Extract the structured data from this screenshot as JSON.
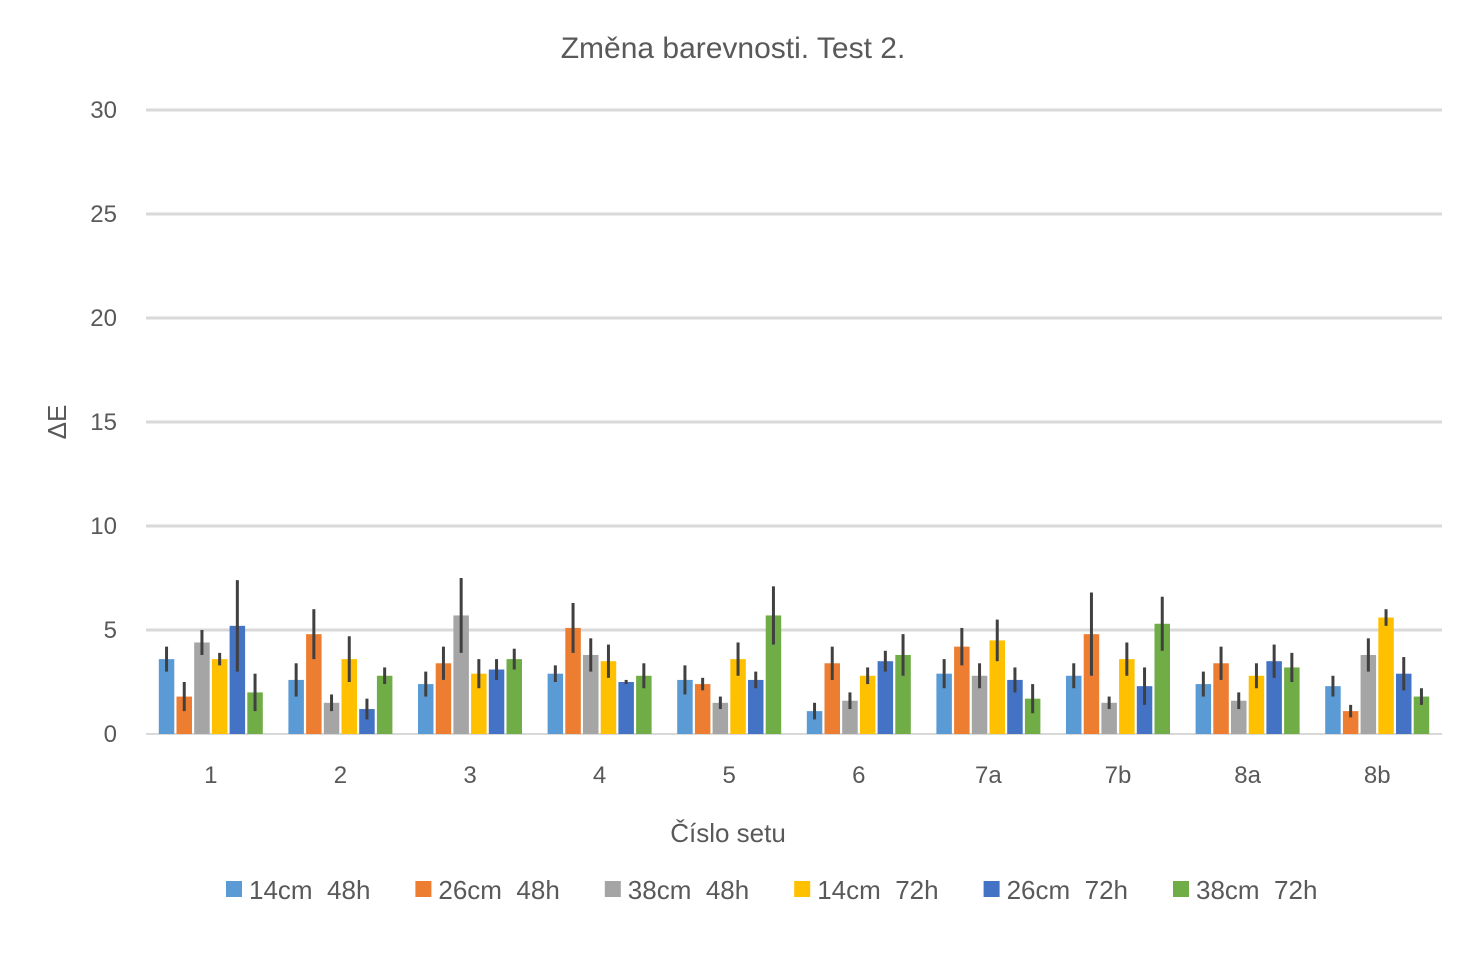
{
  "chart_data": {
    "type": "bar",
    "title": "Změna barevnosti. Test 2.",
    "xlabel": "Číslo setu",
    "ylabel": "ΔE",
    "ylim": [
      0,
      30
    ],
    "yticks": [
      "0",
      "5",
      "10",
      "15",
      "20",
      "25",
      "30"
    ],
    "grid": true,
    "legend_position": "bottom",
    "categories": [
      "1",
      "2",
      "3",
      "4",
      "5",
      "6",
      "7a",
      "7b",
      "8a",
      "8b"
    ],
    "series": [
      {
        "name": "14cm  48h",
        "color": "#5B9BD5",
        "values": [
          3.6,
          2.6,
          2.4,
          2.9,
          2.6,
          1.1,
          2.9,
          2.8,
          2.4,
          2.3
        ],
        "errors": [
          0.6,
          0.8,
          0.6,
          0.4,
          0.7,
          0.4,
          0.7,
          0.6,
          0.6,
          0.5
        ]
      },
      {
        "name": "26cm  48h",
        "color": "#ED7D31",
        "values": [
          1.8,
          4.8,
          3.4,
          5.1,
          2.4,
          3.4,
          4.2,
          4.8,
          3.4,
          1.1
        ],
        "errors": [
          0.7,
          1.2,
          0.8,
          1.2,
          0.3,
          0.8,
          0.9,
          2.0,
          0.8,
          0.3
        ]
      },
      {
        "name": "38cm  48h",
        "color": "#A5A5A5",
        "values": [
          4.4,
          1.5,
          5.7,
          3.8,
          1.5,
          1.6,
          2.8,
          1.5,
          1.6,
          3.8
        ],
        "errors": [
          0.6,
          0.4,
          1.8,
          0.8,
          0.3,
          0.4,
          0.6,
          0.3,
          0.4,
          0.8
        ]
      },
      {
        "name": "14cm  72h",
        "color": "#FFC000",
        "values": [
          3.6,
          3.6,
          2.9,
          3.5,
          3.6,
          2.8,
          4.5,
          3.6,
          2.8,
          5.6
        ],
        "errors": [
          0.3,
          1.1,
          0.7,
          0.8,
          0.8,
          0.4,
          1.0,
          0.8,
          0.6,
          0.4
        ]
      },
      {
        "name": "26cm  72h",
        "color": "#4472C4",
        "values": [
          5.2,
          1.2,
          3.1,
          2.5,
          2.6,
          3.5,
          2.6,
          2.3,
          3.5,
          2.9
        ],
        "errors": [
          2.2,
          0.5,
          0.5,
          0.1,
          0.4,
          0.5,
          0.6,
          0.9,
          0.8,
          0.8
        ]
      },
      {
        "name": "38cm  72h",
        "color": "#70AD47",
        "values": [
          2.0,
          2.8,
          3.6,
          2.8,
          5.7,
          3.8,
          1.7,
          5.3,
          3.2,
          1.8
        ],
        "errors": [
          0.9,
          0.4,
          0.5,
          0.6,
          1.4,
          1.0,
          0.7,
          1.3,
          0.7,
          0.4
        ]
      }
    ]
  }
}
